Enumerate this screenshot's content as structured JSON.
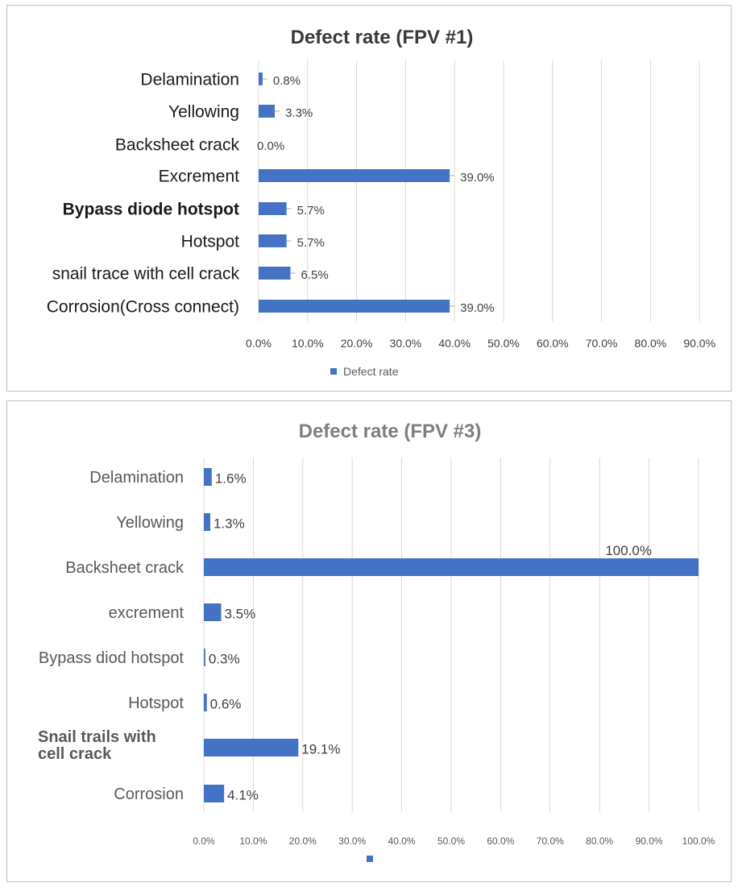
{
  "chart_data": [
    {
      "type": "bar",
      "orientation": "horizontal",
      "title": "Defect rate (FPV #1)",
      "categories": [
        "Delamination",
        "Yellowing",
        "Backsheet crack",
        "Excrement",
        "Bypass diode hotspot",
        "Hotspot",
        "snail trace with cell crack",
        "Corrosion(Cross connect)"
      ],
      "series": [
        {
          "name": "Defect rate",
          "values": [
            0.8,
            3.3,
            0.0,
            39.0,
            5.7,
            5.7,
            6.5,
            39.0
          ]
        }
      ],
      "data_labels": [
        "0.8%",
        "3.3%",
        "0.0%",
        "39.0%",
        "5.7%",
        "5.7%",
        "6.5%",
        "39.0%"
      ],
      "x_ticks": [
        "0.0%",
        "10.0%",
        "20.0%",
        "30.0%",
        "40.0%",
        "50.0%",
        "60.0%",
        "70.0%",
        "80.0%",
        "90.0%"
      ],
      "xlim": [
        0,
        90
      ],
      "grid": true,
      "legend": "bottom",
      "bar_color": "#4472c4"
    },
    {
      "type": "bar",
      "orientation": "horizontal",
      "title": "Defect rate (FPV #3)",
      "categories": [
        "Delamination",
        "Yellowing",
        "Backsheet crack",
        "excrement",
        "Bypass diod hotspot",
        "Hotspot",
        "Snail trails with cell crack",
        "Corrosion"
      ],
      "series": [
        {
          "values": [
            1.6,
            1.3,
            100.0,
            3.5,
            0.3,
            0.6,
            19.1,
            4.1
          ]
        }
      ],
      "data_labels": [
        "1.6%",
        "1.3%",
        "100.0%",
        "3.5%",
        "0.3%",
        "0.6%",
        "19.1%",
        "4.1%"
      ],
      "x_ticks": [
        "0.0%",
        "10.0%",
        "20.0%",
        "30.0%",
        "40.0%",
        "50.0%",
        "60.0%",
        "70.0%",
        "80.0%",
        "90.0%",
        "100.0%"
      ],
      "xlim": [
        0,
        100
      ],
      "grid": true,
      "legend": "bottom",
      "bar_color": "#4472c4"
    }
  ]
}
